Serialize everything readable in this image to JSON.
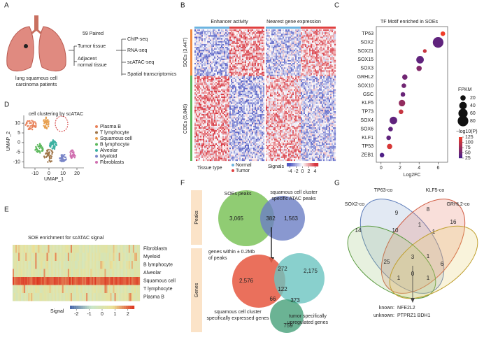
{
  "panel_a": {
    "letter": "A",
    "patients": [
      "lung squamous cell",
      "carcinoma patients"
    ],
    "paired": "59 Paired",
    "tumor": "Tumor tissue",
    "adjacent": [
      "Adjacent",
      "normal tissue"
    ],
    "assays": [
      "ChIP-seq",
      "RNA-seq",
      "scATAC-seq",
      "Spatial transcriptomics"
    ]
  },
  "panel_b": {
    "letter": "B",
    "headers": [
      "Enhancer activity",
      "Nearest gene expression"
    ],
    "row_groups": [
      "SOEs (3,447)",
      "CDEs (5,846)"
    ],
    "tissue_title": "Tissue type",
    "tissues": [
      "Normal",
      "Tumor"
    ],
    "signal_title": "Signals",
    "signal_ticks": [
      -4,
      -2,
      0,
      2,
      4
    ],
    "signal_lim": [
      -5,
      5
    ]
  },
  "panel_c": {
    "letter": "C",
    "type": "scatter",
    "title": "TF Motif enriched in SOEs",
    "categories": [
      "TP63",
      "SOX2",
      "SOX21",
      "SOX15",
      "SOX3",
      "GRHL2",
      "SOX10",
      "GSC",
      "KLF5",
      "TP73",
      "SOX4",
      "SOX6",
      "KLF1",
      "TP53",
      "ZEB1"
    ],
    "values": [
      6.5,
      6.0,
      4.6,
      4.1,
      4.0,
      2.5,
      2.4,
      2.3,
      2.2,
      2.1,
      1.3,
      1.0,
      0.8,
      0.9,
      0.1
    ],
    "sizes": [
      15,
      80,
      10,
      40,
      20,
      20,
      15,
      15,
      30,
      15,
      40,
      15,
      15,
      20,
      15
    ],
    "colors_p": [
      125,
      40,
      100,
      40,
      60,
      50,
      50,
      45,
      70,
      100,
      40,
      40,
      40,
      110,
      30
    ],
    "xlabel": "Log2FC",
    "xlim": [
      -0.5,
      7
    ],
    "xticks": [
      0,
      2,
      4,
      6
    ],
    "size_title": "FPKM",
    "size_legend": [
      20,
      40,
      60,
      80
    ],
    "color_title": "−log10(P)",
    "color_ticks": [
      125,
      100,
      75,
      50,
      25
    ],
    "color_lim": [
      25,
      125
    ]
  },
  "panel_d": {
    "letter": "D",
    "title": "cell clustering by scATAC",
    "ylabel": "UMAP_2",
    "xlabel": "UMAP_1",
    "xlim": [
      -18,
      25
    ],
    "ylim": [
      -13,
      14
    ],
    "xticks": [
      -10,
      0,
      10,
      20
    ],
    "yticks": [
      10,
      5,
      0,
      -5,
      -10
    ],
    "legend": [
      {
        "name": "Plasma B",
        "color": "#e8825a"
      },
      {
        "name": "T lymphocyte",
        "color": "#a0764a"
      },
      {
        "name": "Squamous cell",
        "color": "#e8a050"
      },
      {
        "name": "B lymphocyte",
        "color": "#5cb85c"
      },
      {
        "name": "Alveolar",
        "color": "#3bb0a0"
      },
      {
        "name": "Myeloid",
        "color": "#7a86c8"
      },
      {
        "name": "Fibroblasts",
        "color": "#d070b0"
      }
    ]
  },
  "panel_e": {
    "letter": "E",
    "title": "SOE  enrichment for scATAC signal",
    "rows": [
      "Fibroblasts",
      "Myeloid",
      "B lymphocyte",
      "Alveolar",
      "Squamous cell",
      "T lymphocyte",
      "Plasma B"
    ],
    "signal_title": "Signal",
    "signal_ticks": [
      -2,
      -1,
      0,
      1,
      2
    ],
    "signal_lim": [
      -2.5,
      2.5
    ]
  },
  "panel_f": {
    "letter": "F",
    "side": [
      "Peaks",
      "Genes"
    ],
    "soe_peaks": "SOEs peaks",
    "atac_peaks": [
      "squamous cell cluster",
      "specific ATAC  peaks"
    ],
    "peak_counts": [
      "3,065",
      "382",
      "1,563"
    ],
    "genes_label": [
      "genes within ± 0.2Mb",
      "of peaks"
    ],
    "expr_label": [
      "squamous cell cluster",
      "specifically expressed genes"
    ],
    "tumor_label": [
      "tumor specifically",
      "upregulated genes"
    ],
    "gene_counts": [
      "2,576",
      "272",
      "2,175",
      "122",
      "66",
      "373",
      "759"
    ]
  },
  "panel_g": {
    "letter": "G",
    "sets": [
      "TP63-co",
      "KLF5-co",
      "SOX2-co",
      "GRHL2-co"
    ],
    "counts": [
      "9",
      "8",
      "14",
      "10",
      "1",
      "1",
      "16",
      "25",
      "3",
      "1",
      "6",
      "1",
      "0",
      "1"
    ],
    "known": "known:",
    "known_genes": "NFE2L2",
    "unknown": "unknown:",
    "unknown_genes": "PTPRZ1   BDH1"
  }
}
